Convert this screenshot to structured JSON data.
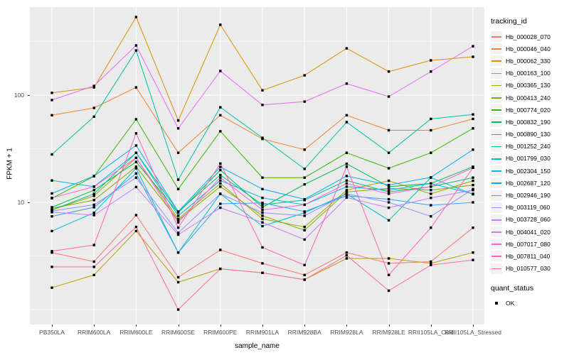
{
  "figure": {
    "xlabel": "sample_name",
    "ylabel": "FPKM + 1"
  },
  "legend": {
    "tracking_title": "tracking_id",
    "quant_title": "quant_status",
    "quant_items": [
      {
        "label": "OK",
        "marker": "black-square"
      }
    ]
  },
  "chart_data": {
    "type": "line",
    "title": "",
    "xlabel": "sample_name",
    "ylabel": "FPKM + 1",
    "y_scale": "log10",
    "ylim": [
      0.75,
      683
    ],
    "y_ticks": [
      {
        "value": 100,
        "label": "100"
      },
      {
        "value": 10,
        "label": "10"
      }
    ],
    "major_gridlines": [
      100,
      10,
      1
    ],
    "minor_gridlines": [
      316.228,
      31.623,
      3.162
    ],
    "grid": true,
    "legend_position": "right",
    "panel_bg": "#EBEBEB",
    "grid_color": "#FFFFFF",
    "point_color": "#000000",
    "point_shape": "square",
    "categories": [
      "PB350LA",
      "RRIM600LA",
      "RRIM600LE",
      "RRIM600SE",
      "RRIM600PE",
      "RRIM901LA",
      "RRIM928BA",
      "RRIM928LA",
      "RRIM928LE",
      "RRII105LA_Cold",
      "RRII105LA_Stressed"
    ],
    "series": [
      {
        "name": "Hb_000028_070",
        "color": "#F8766D",
        "values": [
          3.4,
          2.8,
          7.6,
          2.0,
          3.6,
          2.7,
          2.1,
          3.4,
          2.7,
          2.8,
          5.8
        ]
      },
      {
        "name": "Hb_000046_040",
        "color": "#EA8331",
        "values": [
          65,
          76,
          118,
          29,
          65,
          39,
          31,
          65,
          47,
          47,
          60
        ]
      },
      {
        "name": "Hb_000062_330",
        "color": "#D89000",
        "values": [
          105,
          118,
          535,
          58,
          453,
          111,
          153,
          273,
          166,
          211,
          228
        ]
      },
      {
        "name": "Hb_000163_100",
        "color": "#C09B00",
        "values": [
          1.6,
          2.1,
          5.4,
          1.8,
          2.4,
          2.2,
          1.9,
          3.0,
          3.0,
          2.7,
          3.4
        ]
      },
      {
        "name": "Hb_000365_130",
        "color": "#A3A500",
        "values": [
          8.5,
          11.5,
          26,
          7.0,
          15,
          7.0,
          5.9,
          13,
          15.9,
          12,
          15.9
        ]
      },
      {
        "name": "Hb_000413_240",
        "color": "#7CAE00",
        "values": [
          8.8,
          10.5,
          21.5,
          6.8,
          14,
          7.5,
          5.5,
          12.5,
          13.5,
          13,
          14.5
        ]
      },
      {
        "name": "Hb_000774_020",
        "color": "#39B600",
        "values": [
          10.9,
          17.5,
          59.5,
          13.3,
          46,
          17,
          17,
          29,
          20.8,
          29,
          49
        ]
      },
      {
        "name": "Hb_000832_190",
        "color": "#00BB4E",
        "values": [
          9.0,
          13,
          23.8,
          8.0,
          20,
          9.0,
          14.7,
          22.9,
          14,
          15,
          21.5
        ]
      },
      {
        "name": "Hb_000890_130",
        "color": "#00BF7D",
        "values": [
          8.5,
          12,
          29,
          8.2,
          18,
          9.5,
          10.5,
          16,
          12.5,
          14,
          17
        ]
      },
      {
        "name": "Hb_001252_240",
        "color": "#00C1A3",
        "values": [
          28,
          63,
          261,
          16.3,
          77,
          40,
          20.5,
          56,
          29,
          60,
          66
        ]
      },
      {
        "name": "Hb_001799_030",
        "color": "#00BFC4",
        "values": [
          5.4,
          8.0,
          20.8,
          3.4,
          12,
          6.0,
          8.0,
          12,
          6.8,
          17,
          11.9
        ]
      },
      {
        "name": "Hb_002304_150",
        "color": "#00BAE0",
        "values": [
          16,
          14,
          29,
          7.5,
          16,
          11,
          9.5,
          14,
          13,
          15,
          12
        ]
      },
      {
        "name": "Hb_002687_120",
        "color": "#00B0F6",
        "values": [
          12.1,
          17.6,
          33.9,
          8.2,
          21.4,
          13.3,
          10.7,
          17.6,
          14.5,
          17.1,
          31
        ]
      },
      {
        "name": "Hb_002946_190",
        "color": "#35A2FF",
        "values": [
          7.4,
          9.0,
          18.6,
          3.4,
          9.7,
          9.9,
          8.2,
          11.5,
          10.7,
          9.4,
          10
        ]
      },
      {
        "name": "Hb_003119_060",
        "color": "#9590FF",
        "values": [
          8.3,
          9.5,
          17,
          5.2,
          12,
          8.0,
          7.5,
          12,
          10,
          7.4,
          13.3
        ]
      },
      {
        "name": "Hb_003728_060",
        "color": "#C77CFF",
        "values": [
          8.1,
          7.6,
          13.9,
          5.0,
          8.9,
          6.5,
          4.5,
          11.1,
          8.9,
          11,
          13
        ]
      },
      {
        "name": "Hb_004041_020",
        "color": "#E76BF3",
        "values": [
          90,
          122,
          291,
          49,
          168,
          81,
          87,
          128,
          97,
          166,
          286
        ]
      },
      {
        "name": "Hb_007017_080",
        "color": "#FA62DB",
        "values": [
          11,
          14,
          26,
          6.5,
          17,
          8.5,
          9.5,
          15,
          12,
          14,
          21
        ]
      },
      {
        "name": "Hb_007811_040",
        "color": "#FF62BC",
        "values": [
          3.5,
          4.0,
          44,
          5.8,
          23,
          3.8,
          2.6,
          21.5,
          2.1,
          5.8,
          21
        ]
      },
      {
        "name": "Hb_010577_030",
        "color": "#FF6A98",
        "values": [
          2.5,
          2.5,
          5.9,
          1.0,
          2.4,
          2.2,
          1.9,
          3.2,
          1.5,
          2.6,
          2.9
        ]
      }
    ]
  }
}
